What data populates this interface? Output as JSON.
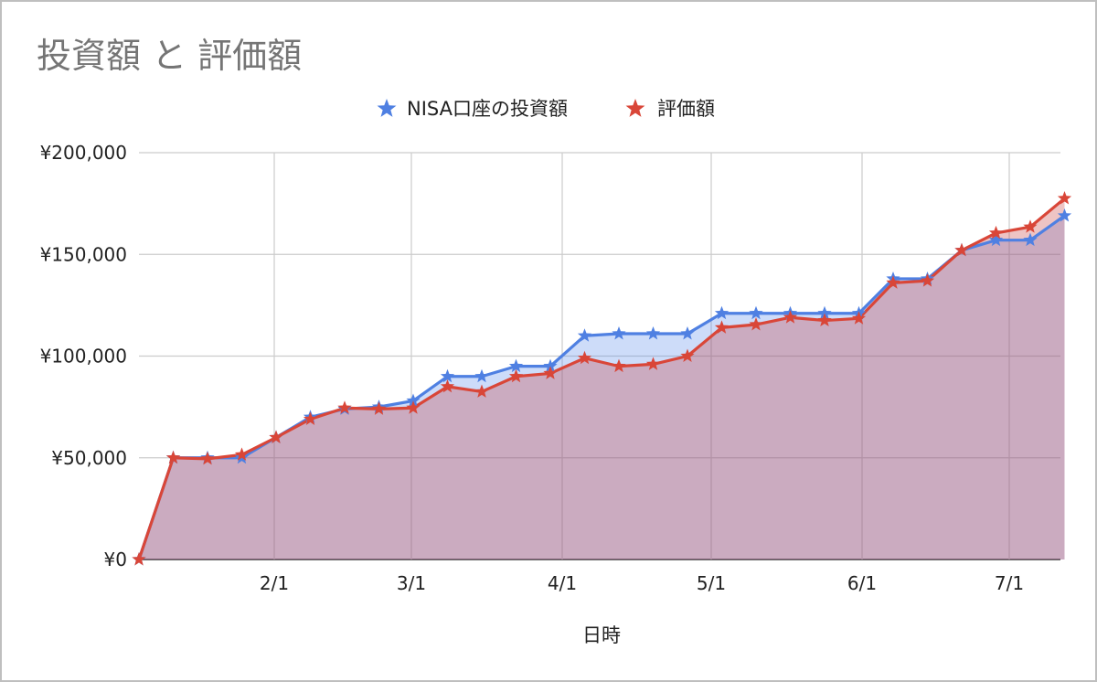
{
  "chart_data": {
    "type": "area",
    "title": "投資額 と 評価額",
    "xlabel": "日時",
    "ylabel": "",
    "legend_position": "top",
    "grid": true,
    "ylim": [
      0,
      200000
    ],
    "y_ticks": [
      {
        "value": 0,
        "label": "¥0"
      },
      {
        "value": 50000,
        "label": "¥50,000"
      },
      {
        "value": 100000,
        "label": "¥100,000"
      },
      {
        "value": 150000,
        "label": "¥150,000"
      },
      {
        "value": 200000,
        "label": "¥200,000"
      }
    ],
    "x_ticks": [
      "2/1",
      "3/1",
      "4/1",
      "5/1",
      "6/1",
      "7/1"
    ],
    "x_dates": [
      "1/5",
      "1/12",
      "1/19",
      "1/26",
      "2/2",
      "2/9",
      "2/16",
      "2/23",
      "3/2",
      "3/9",
      "3/16",
      "3/23",
      "3/30",
      "4/6",
      "4/13",
      "4/20",
      "4/27",
      "5/4",
      "5/11",
      "5/18",
      "5/25",
      "6/1",
      "6/8",
      "6/15",
      "6/22",
      "6/29",
      "7/6",
      "7/13"
    ],
    "series": [
      {
        "name": "NISA口座の投資額",
        "color": "#4f80e2",
        "values": [
          0,
          50000,
          50000,
          50000,
          60000,
          70000,
          74000,
          75000,
          78000,
          90000,
          90000,
          95000,
          95000,
          110000,
          111000,
          111000,
          111000,
          121000,
          121000,
          121000,
          121000,
          121000,
          138000,
          138000,
          152000,
          157000,
          157000,
          169000
        ]
      },
      {
        "name": "評価額",
        "color": "#d94638",
        "values": [
          0,
          50000,
          49500,
          51500,
          60000,
          69000,
          74500,
          74000,
          74500,
          85000,
          82500,
          90000,
          91500,
          99000,
          95000,
          96000,
          100000,
          114000,
          115500,
          119000,
          117500,
          118500,
          136000,
          137000,
          152000,
          160500,
          163500,
          177500
        ]
      }
    ]
  }
}
